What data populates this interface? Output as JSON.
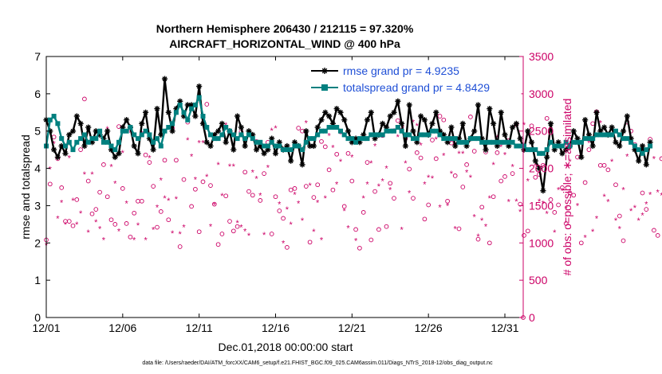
{
  "chart_data": {
    "type": "line",
    "title": "Northern Hemisphere 206430 / 212115 = 97.320%",
    "subtitle": "AIRCRAFT_HORIZONTAL_WIND @ 400 hPa",
    "xlabel": "Dec.01,2018 00:00:00 start",
    "ylabel": "rmse and totalspread",
    "ylabel_right": "# of obs: o=possible; ∗=assimilated",
    "footnote": "data file: /Users/raeder/DAI/ATM_forcXX/CAM6_setup/f.e21.FHIST_BGC.f09_025.CAM6assim.011/Diags_NTrS_2018-12/obs_diag_output.nc",
    "xlim": [
      1,
      32.2
    ],
    "ylim": [
      0,
      7
    ],
    "ylim_right": [
      0,
      3500
    ],
    "x_ticks": [
      1,
      6,
      11,
      16,
      21,
      26,
      31
    ],
    "x_tick_labels": [
      "12/01",
      "12/06",
      "12/11",
      "12/16",
      "12/21",
      "12/26",
      "12/31"
    ],
    "y_ticks": [
      0,
      1,
      2,
      3,
      4,
      5,
      6,
      7
    ],
    "y_tick_labels": [
      "0",
      "1",
      "2",
      "3",
      "4",
      "5",
      "6",
      "7"
    ],
    "y_ticks_right": [
      0,
      500,
      1000,
      1500,
      2000,
      2500,
      3000,
      3500
    ],
    "y_tick_labels_right": [
      "0",
      "500",
      "1000",
      "1500",
      "2000",
      "2500",
      "3000",
      "3500"
    ],
    "legend_position": "top-right",
    "colors": {
      "rmse": "#000000",
      "spread": "#00807f",
      "obs": "#cc0066",
      "legend_text": "#1f4fd6"
    },
    "series": [
      {
        "name": "rmse grand pr = 4.9235",
        "marker": "asterisk",
        "values": [
          5.3,
          5.0,
          4.5,
          4.3,
          4.6,
          4.4,
          4.9,
          5.0,
          5.4,
          5.2,
          4.6,
          5.1,
          4.7,
          5.0,
          4.9,
          4.8,
          5.0,
          4.5,
          4.3,
          4.4,
          5.1,
          5.3,
          5.1,
          4.6,
          4.4,
          5.2,
          5.5,
          4.8,
          4.5,
          5.6,
          4.9,
          6.4,
          5.5,
          5.0,
          5.6,
          5.8,
          5.4,
          5.7,
          5.7,
          5.4,
          6.2,
          5.2,
          4.7,
          4.6,
          4.9,
          5.0,
          5.2,
          4.7,
          5.0,
          4.5,
          5.4,
          5.1,
          4.6,
          5.0,
          4.9,
          4.5,
          4.6,
          4.4,
          4.5,
          4.8,
          4.4,
          4.7,
          4.5,
          4.6,
          4.2,
          4.7,
          4.6,
          4.1,
          5.0,
          4.6,
          4.6,
          5.1,
          5.3,
          5.5,
          5.4,
          5.2,
          5.6,
          5.5,
          5.3,
          5.0,
          4.7,
          4.8,
          4.7,
          4.9,
          5.3,
          5.5,
          4.8,
          4.9,
          5.2,
          5.1,
          5.4,
          5.5,
          5.8,
          5.2,
          4.6,
          5.7,
          5.0,
          4.7,
          5.4,
          5.3,
          4.9,
          5.2,
          5.5,
          5.0,
          4.9,
          4.7,
          5.1,
          4.6,
          4.8,
          5.2,
          4.6,
          4.8,
          5.0,
          5.7,
          4.8,
          4.5,
          5.6,
          5.2,
          4.6,
          5.5,
          4.9,
          4.6,
          5.1,
          5.2,
          4.8,
          4.5,
          5.0,
          4.7,
          4.2,
          4.0,
          3.4,
          4.3,
          5.2,
          4.5,
          4.7,
          4.4,
          4.5,
          4.6,
          5.0,
          4.8,
          4.3,
          5.3,
          4.9,
          4.6,
          5.5,
          5.0,
          5.1,
          4.9,
          5.1,
          4.7,
          4.6,
          5.0,
          5.4,
          4.8,
          4.5,
          4.2,
          4.6,
          4.1,
          4.7
        ]
      },
      {
        "name": "totalspread grand pr = 4.8429",
        "marker": "square",
        "values": [
          4.6,
          5.3,
          5.4,
          5.2,
          4.8,
          4.6,
          4.7,
          4.5,
          4.7,
          4.8,
          4.9,
          4.7,
          4.8,
          4.8,
          5.0,
          4.7,
          4.7,
          4.6,
          4.5,
          4.7,
          5.0,
          5.0,
          5.1,
          4.9,
          4.8,
          4.9,
          5.0,
          4.9,
          4.7,
          4.8,
          4.6,
          5.0,
          5.1,
          5.2,
          5.5,
          5.7,
          5.5,
          5.3,
          5.6,
          5.7,
          5.9,
          5.4,
          5.1,
          4.9,
          4.8,
          4.8,
          4.9,
          5.1,
          5.0,
          4.9,
          4.8,
          4.9,
          4.8,
          4.9,
          4.8,
          4.7,
          4.7,
          4.6,
          4.6,
          4.7,
          4.6,
          4.6,
          4.5,
          4.5,
          4.5,
          4.6,
          4.6,
          4.5,
          4.7,
          4.8,
          4.8,
          4.9,
          5.0,
          5.0,
          5.1,
          5.1,
          5.1,
          5.0,
          4.9,
          4.8,
          4.8,
          4.7,
          4.8,
          4.8,
          4.8,
          4.9,
          4.9,
          4.9,
          4.9,
          5.0,
          5.0,
          5.0,
          5.1,
          5.0,
          4.9,
          4.9,
          4.8,
          4.8,
          4.9,
          4.9,
          4.9,
          5.0,
          5.0,
          4.9,
          4.8,
          4.8,
          4.8,
          4.8,
          4.7,
          4.7,
          4.7,
          4.8,
          4.8,
          4.8,
          4.7,
          4.7,
          4.7,
          4.7,
          4.7,
          4.7,
          4.7,
          4.7,
          4.7,
          4.6,
          4.6,
          4.6,
          4.5,
          4.5,
          4.5,
          4.4,
          4.4,
          4.5,
          4.7,
          4.6,
          4.6,
          4.6,
          4.7,
          4.6,
          4.7,
          4.7,
          4.7,
          4.8,
          4.8,
          4.8,
          4.9,
          4.9,
          4.9,
          4.9,
          4.9,
          5.0,
          4.9,
          4.8,
          4.8,
          4.7,
          4.6,
          4.5,
          4.4,
          4.5,
          4.6
        ]
      }
    ],
    "obs_possible": [
      1040,
      1790,
      2420,
      2130,
      1740,
      1290,
      1290,
      1230,
      1580,
      2250,
      2930,
      1830,
      1390,
      1450,
      1680,
      2050,
      1620,
      1310,
      1250,
      2560,
      1730,
      1260,
      1080,
      1400,
      1560,
      1560,
      2180,
      2080,
      1760,
      1210,
      1420,
      2110,
      1310,
      2540,
      2110,
      950,
      1850,
      2620,
      1490,
      1720,
      1150,
      1820,
      2860,
      1770,
      1520,
      980,
      1120,
      1630,
      1290,
      1160,
      1220,
      2490,
      1950,
      1690,
      1640,
      2360,
      1570,
      1930,
      2350,
      1120,
      1620,
      1430,
      1330,
      940,
      1710,
      1730,
      2540,
      2500,
      1760,
      1010,
      1610,
      1780,
      2360,
      2290,
      1980,
      1710,
      2190,
      2490,
      1490,
      2200,
      1830,
      1180,
      930,
      1410,
      2080,
      1040,
      1690,
      1180,
      2440,
      1220,
      1800,
      1600,
      2640,
      2560,
      2400,
      1990,
      1600,
      2210,
      2140,
      1320,
      1510,
      2380,
      2130,
      2700,
      2650,
      1560,
      2340,
      1900,
      1190,
      1750,
      2050,
      2690,
      2230,
      1050,
      1480,
      2220,
      1000,
      1620,
      2210,
      1830,
      1890,
      2370,
      1930,
      2590,
      1520,
      1100,
      1160,
      2570,
      1880,
      1920,
      2040,
      2670,
      1580,
      1410,
      1510,
      1740,
      1260,
      1670,
      1640,
      2150,
      1000,
      1810,
      2250,
      2600,
      2760,
      2040,
      2040,
      1980,
      2490,
      1780,
      1360,
      1030,
      2620,
      2500,
      2320,
      2250,
      1670,
      1450,
      2390,
      1170,
      1100,
      2130,
      2030
    ],
    "obs_assimilated": [
      970,
      1990,
      2330,
      1330,
      1540,
      1250,
      2140,
      1570,
      1250,
      1400,
      1920,
      1140,
      1920,
      1280,
      1190,
      1040,
      2530,
      2020,
      1800,
      1160,
      2210,
      1530,
      2480,
      1040,
      1240,
      2470,
      1040,
      2140,
      1180,
      1480,
      1840,
      1600,
      1570,
      1130,
      1590,
      1120,
      1210,
      2380,
      2160,
      1850,
      2340,
      2340,
      1890,
      1220,
      1510,
      2050,
      1630,
      2580,
      2030,
      2030,
      1270,
      1210,
      1160,
      1100,
      1950,
      1860,
      1640,
      1110,
      2010,
      2510,
      2540,
      1520,
      1000,
      1450,
      1250,
      1650,
      1530,
      1300,
      2610,
      1770,
      1150,
      1540,
      1040,
      1600,
      2440,
      2280,
      1790,
      2090,
      1430,
      1200,
      2150,
      1030,
      2380,
      1600,
      1790,
      2070,
      2300,
      1760,
      1830,
      2000,
      1710,
      2500,
      2420,
      1180,
      2070,
      1670,
      2620,
      2570,
      2310,
      1790,
      1880,
      1870,
      2390,
      1480,
      2170,
      1500,
      1930,
      1190,
      2200,
      2200,
      1950,
      1880,
      1350,
      1090,
      1300,
      1220,
      1600,
      2050,
      2410,
      2290,
      2180,
      1550,
      2020,
      1560,
      1420,
      2580,
      1830,
      2240,
      2040,
      1560,
      1530,
      1390,
      2490,
      1140,
      1710,
      1700,
      1460,
      2090,
      2320,
      1500,
      2220,
      1070,
      2340,
      1150,
      1330,
      2610,
      1620,
      1550,
      2090,
      1300,
      1190,
      1710,
      2160,
      1430,
      1470,
      1300,
      1370,
      1520,
      1650,
      2130,
      1680,
      1640,
      2440
    ]
  }
}
